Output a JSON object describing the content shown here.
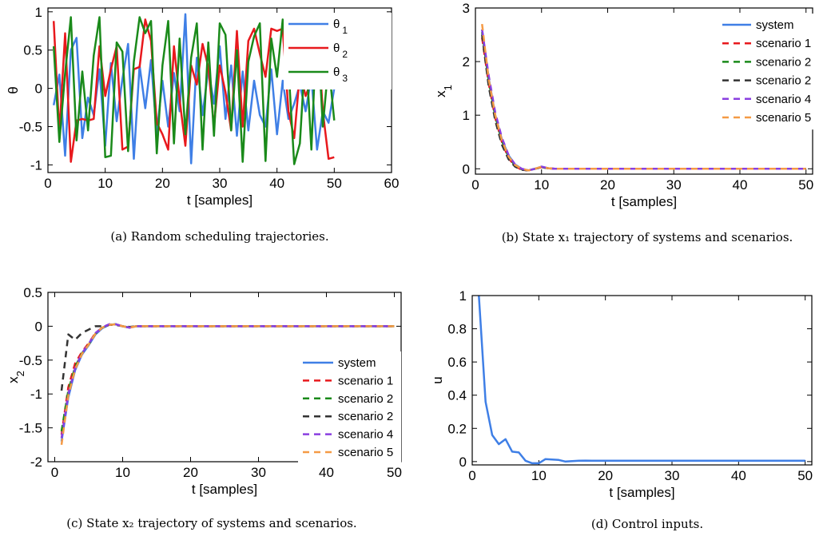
{
  "colors": {
    "blue": "#3f7fe6",
    "red": "#e8191d",
    "green": "#1a8a1a",
    "dark": "#333333",
    "purple": "#8a3fe0",
    "orange": "#f59a45"
  },
  "chart_data": [
    {
      "type": "line",
      "caption": "(a)  Random scheduling trajectories.",
      "xlabel": "t [samples]",
      "ylabel": "θ",
      "xlim": [
        0,
        60
      ],
      "ylim": [
        -1.1,
        1.05
      ],
      "xticks": [
        "0",
        "10",
        "20",
        "30",
        "40",
        "50",
        "60"
      ],
      "yticks": [
        "-1",
        "-0.5",
        "0",
        "0.5",
        "1"
      ],
      "legend_position": "top-right",
      "x": [
        1,
        2,
        3,
        4,
        5,
        6,
        7,
        8,
        9,
        10,
        11,
        12,
        13,
        14,
        15,
        16,
        17,
        18,
        19,
        20,
        21,
        22,
        23,
        24,
        25,
        26,
        27,
        28,
        29,
        30,
        31,
        32,
        33,
        34,
        35,
        36,
        37,
        38,
        39,
        40,
        41,
        42,
        43,
        44,
        45,
        46,
        47,
        48,
        49,
        50
      ],
      "series": [
        {
          "name": "θ",
          "subscript": "1",
          "color": "blue",
          "dash": false,
          "values": [
            -0.22,
            0.18,
            -0.88,
            0.5,
            0.66,
            -0.65,
            -0.12,
            -0.35,
            0.25,
            -0.75,
            0.33,
            -0.43,
            0.12,
            0.58,
            -0.92,
            0.3,
            -0.26,
            0.37,
            -0.6,
            0.1,
            -0.5,
            0.2,
            -0.3,
            0.97,
            -0.98,
            0.4,
            -0.35,
            0.25,
            -0.2,
            0.55,
            -0.4,
            0.3,
            -0.62,
            0.22,
            -0.55,
            0.1,
            -0.35,
            -0.5,
            0.25,
            -0.6,
            0.1,
            -0.4,
            -0.2,
            0.05,
            -0.3,
            0.15,
            -0.8,
            -0.3,
            -0.45,
            0.0
          ]
        },
        {
          "name": "θ",
          "subscript": "2",
          "color": "red",
          "dash": false,
          "values": [
            0.88,
            -0.58,
            0.72,
            -0.96,
            -0.42,
            -0.4,
            -0.42,
            -0.4,
            0.55,
            -0.1,
            0.25,
            0.55,
            -0.8,
            -0.76,
            0.25,
            0.28,
            0.9,
            0.62,
            -0.45,
            -0.6,
            -0.8,
            0.55,
            -0.15,
            -0.75,
            0.3,
            0.05,
            0.58,
            0.28,
            -0.5,
            0.3,
            -0.05,
            -0.55,
            0.75,
            -0.5,
            0.62,
            0.78,
            0.45,
            0.15,
            0.78,
            0.75,
            0.78,
            -0.3,
            -0.65,
            0.2,
            -0.1,
            0.1,
            0.9,
            -0.3,
            -0.92,
            -0.9
          ]
        },
        {
          "name": "θ",
          "subscript": "3",
          "color": "green",
          "dash": false,
          "values": [
            0.55,
            -0.7,
            0.2,
            0.93,
            -0.68,
            0.22,
            -0.55,
            0.43,
            0.93,
            -0.9,
            -0.88,
            0.6,
            0.48,
            -0.82,
            0.35,
            0.93,
            0.72,
            0.88,
            -0.85,
            0.3,
            0.88,
            -0.72,
            0.65,
            -0.6,
            0.4,
            0.85,
            -0.8,
            0.6,
            -0.62,
            0.85,
            0.7,
            -0.55,
            0.5,
            -0.96,
            0.35,
            0.68,
            0.85,
            -0.95,
            0.65,
            0.15,
            0.9,
            0.28,
            -0.99,
            -0.72,
            0.55,
            -0.8,
            0.92,
            -0.5,
            0.33,
            -0.42
          ]
        }
      ]
    },
    {
      "type": "line",
      "caption": "(b)  State x₁ trajectory of systems and scenarios.",
      "xlabel": "t [samples]",
      "ylabel": "x",
      "ylabel_sub": "1",
      "xlim": [
        0,
        51
      ],
      "ylim": [
        -0.1,
        3.0
      ],
      "xticks": [
        "0",
        "10",
        "20",
        "30",
        "40",
        "50"
      ],
      "yticks": [
        "0",
        "1",
        "2",
        "3"
      ],
      "legend_position": "top-right",
      "x": [
        1,
        2,
        3,
        4,
        5,
        6,
        7,
        8,
        9,
        10,
        11,
        12,
        13,
        14,
        15,
        20,
        25,
        30,
        35,
        40,
        45,
        50
      ],
      "series": [
        {
          "name": "system",
          "color": "blue",
          "dash": false,
          "values": [
            2.6,
            1.7,
            1.0,
            0.55,
            0.25,
            0.08,
            0.0,
            -0.03,
            0.0,
            0.04,
            0.01,
            0.0,
            0.0,
            0.0,
            0.0,
            0.0,
            0.0,
            0.0,
            0.0,
            0.0,
            0.0,
            0.0
          ]
        },
        {
          "name": "scenario 1",
          "color": "red",
          "dash": true,
          "values": [
            2.45,
            1.6,
            0.95,
            0.5,
            0.2,
            0.05,
            -0.02,
            -0.03,
            0.0,
            0.03,
            0.01,
            0.0,
            0.0,
            0.0,
            0.0,
            0.0,
            0.0,
            0.0,
            0.0,
            0.0,
            0.0,
            0.0
          ]
        },
        {
          "name": "scenario 2",
          "color": "green",
          "dash": true,
          "values": [
            2.55,
            1.65,
            0.98,
            0.52,
            0.22,
            0.06,
            -0.01,
            -0.03,
            0.0,
            0.03,
            0.01,
            0.0,
            0.0,
            0.0,
            0.0,
            0.0,
            0.0,
            0.0,
            0.0,
            0.0,
            0.0,
            0.0
          ]
        },
        {
          "name": "scenario 2",
          "color": "dark",
          "dash": true,
          "values": [
            2.5,
            1.55,
            0.9,
            0.45,
            0.18,
            0.04,
            -0.02,
            -0.03,
            0.0,
            0.03,
            0.01,
            0.0,
            0.0,
            0.0,
            0.0,
            0.0,
            0.0,
            0.0,
            0.0,
            0.0,
            0.0,
            0.0
          ]
        },
        {
          "name": "scenario 4",
          "color": "purple",
          "dash": true,
          "values": [
            2.6,
            1.75,
            1.05,
            0.58,
            0.26,
            0.08,
            0.0,
            -0.03,
            0.0,
            0.04,
            0.01,
            0.0,
            0.0,
            0.0,
            0.0,
            0.0,
            0.0,
            0.0,
            0.0,
            0.0,
            0.0,
            0.0
          ]
        },
        {
          "name": "scenario 5",
          "color": "orange",
          "dash": true,
          "values": [
            2.7,
            1.68,
            1.0,
            0.53,
            0.23,
            0.07,
            0.0,
            -0.03,
            0.0,
            0.04,
            0.01,
            0.0,
            0.0,
            0.0,
            0.0,
            0.0,
            0.0,
            0.0,
            0.0,
            0.0,
            0.0,
            0.0
          ]
        }
      ]
    },
    {
      "type": "line",
      "caption": "(c)  State x₂ trajectory of systems and scenarios.",
      "xlabel": "t [samples]",
      "ylabel": "x",
      "ylabel_sub": "2",
      "xlim": [
        -1,
        51
      ],
      "ylim": [
        -2.0,
        0.5
      ],
      "xticks": [
        "0",
        "10",
        "20",
        "30",
        "40",
        "50"
      ],
      "yticks": [
        "-2",
        "-1.5",
        "-1",
        "-0.5",
        "0",
        "0.5"
      ],
      "legend_position": "bottom-right",
      "x": [
        1,
        2,
        3,
        4,
        5,
        6,
        7,
        8,
        9,
        10,
        11,
        12,
        13,
        14,
        15,
        20,
        25,
        30,
        35,
        40,
        45,
        50
      ],
      "series": [
        {
          "name": "system",
          "color": "blue",
          "dash": false,
          "values": [
            -1.7,
            -1.05,
            -0.65,
            -0.42,
            -0.28,
            -0.12,
            -0.03,
            0.02,
            0.03,
            0.0,
            -0.02,
            0.0,
            0.0,
            0.0,
            0.0,
            0.0,
            0.0,
            0.0,
            0.0,
            0.0,
            0.0,
            0.0
          ]
        },
        {
          "name": "scenario 1",
          "color": "red",
          "dash": true,
          "values": [
            -1.6,
            -0.9,
            -0.55,
            -0.38,
            -0.25,
            -0.1,
            -0.02,
            0.02,
            0.03,
            0.0,
            -0.02,
            0.0,
            0.0,
            0.0,
            0.0,
            0.0,
            0.0,
            0.0,
            0.0,
            0.0,
            0.0,
            0.0
          ]
        },
        {
          "name": "scenario 2",
          "color": "green",
          "dash": true,
          "values": [
            -1.55,
            -0.95,
            -0.6,
            -0.4,
            -0.27,
            -0.11,
            -0.02,
            0.02,
            0.03,
            0.0,
            -0.02,
            0.0,
            0.0,
            0.0,
            0.0,
            0.0,
            0.0,
            0.0,
            0.0,
            0.0,
            0.0,
            0.0
          ]
        },
        {
          "name": "scenario 2",
          "color": "dark",
          "dash": true,
          "values": [
            -0.95,
            -0.12,
            -0.2,
            -0.1,
            -0.05,
            0.0,
            0.0,
            0.02,
            0.02,
            0.0,
            -0.01,
            0.0,
            0.0,
            0.0,
            0.0,
            0.0,
            0.0,
            0.0,
            0.0,
            0.0,
            0.0,
            0.0
          ]
        },
        {
          "name": "scenario 4",
          "color": "purple",
          "dash": true,
          "values": [
            -1.65,
            -1.0,
            -0.62,
            -0.4,
            -0.26,
            -0.1,
            -0.02,
            0.03,
            0.03,
            0.0,
            -0.02,
            0.0,
            0.0,
            0.0,
            0.0,
            0.0,
            0.0,
            0.0,
            0.0,
            0.0,
            0.0,
            0.0
          ]
        },
        {
          "name": "scenario 5",
          "color": "orange",
          "dash": true,
          "values": [
            -1.75,
            -1.02,
            -0.64,
            -0.41,
            -0.27,
            -0.11,
            -0.02,
            0.02,
            0.03,
            0.0,
            -0.02,
            0.0,
            0.0,
            0.0,
            0.0,
            0.0,
            0.0,
            0.0,
            0.0,
            0.0,
            0.0,
            0.0
          ]
        }
      ]
    },
    {
      "type": "line",
      "caption": "(d)  Control inputs.",
      "xlabel": "t [samples]",
      "ylabel": "u",
      "xlim": [
        0,
        51
      ],
      "ylim": [
        -0.02,
        1.0
      ],
      "xticks": [
        "0",
        "10",
        "20",
        "30",
        "40",
        "50"
      ],
      "yticks": [
        "0",
        "0.2",
        "0.4",
        "0.6",
        "0.8",
        "1"
      ],
      "legend_position": "none",
      "x": [
        1,
        2,
        3,
        4,
        5,
        6,
        7,
        8,
        9,
        10,
        11,
        12,
        13,
        14,
        15,
        16,
        17,
        18,
        20,
        25,
        30,
        35,
        40,
        45,
        50
      ],
      "series": [
        {
          "name": "",
          "color": "blue",
          "dash": false,
          "values": [
            1.0,
            0.36,
            0.16,
            0.105,
            0.135,
            0.06,
            0.055,
            0.005,
            -0.01,
            -0.01,
            0.015,
            0.012,
            0.01,
            0.0,
            0.003,
            0.005,
            0.006,
            0.005,
            0.005,
            0.005,
            0.005,
            0.005,
            0.005,
            0.005,
            0.005
          ]
        }
      ]
    }
  ]
}
